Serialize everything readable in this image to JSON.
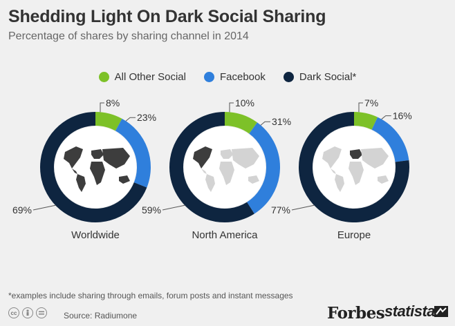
{
  "header": {
    "title": "Shedding Light On Dark Social Sharing",
    "subtitle": "Percentage of shares by sharing channel in 2014"
  },
  "legend": [
    {
      "label": "All Other Social",
      "color": "#7dc128"
    },
    {
      "label": "Facebook",
      "color": "#2f7fdc"
    },
    {
      "label": "Dark Social*",
      "color": "#0e2540"
    }
  ],
  "chart_data": {
    "type": "pie",
    "style": "donut",
    "categories": [
      "All Other Social",
      "Facebook",
      "Dark Social*"
    ],
    "colors": [
      "#7dc128",
      "#2f7fdc",
      "#0e2540"
    ],
    "charts": [
      {
        "region": "Worldwide",
        "values": [
          8,
          23,
          69
        ],
        "labels": [
          "8%",
          "23%",
          "69%"
        ],
        "map_highlight": "world"
      },
      {
        "region": "North America",
        "values": [
          10,
          31,
          59
        ],
        "labels": [
          "10%",
          "31%",
          "59%"
        ],
        "map_highlight": "north-america"
      },
      {
        "region": "Europe",
        "values": [
          7,
          16,
          77
        ],
        "labels": [
          "7%",
          "16%",
          "77%"
        ],
        "map_highlight": "europe"
      }
    ]
  },
  "footnote": "*examples include sharing through emails, forum posts and instant messages",
  "footer": {
    "license_icons": [
      "cc-icon",
      "by-icon",
      "equals-icon"
    ],
    "source": "Source: Radiumone",
    "brand_forbes": "Forbes",
    "brand_statista": "statista"
  }
}
